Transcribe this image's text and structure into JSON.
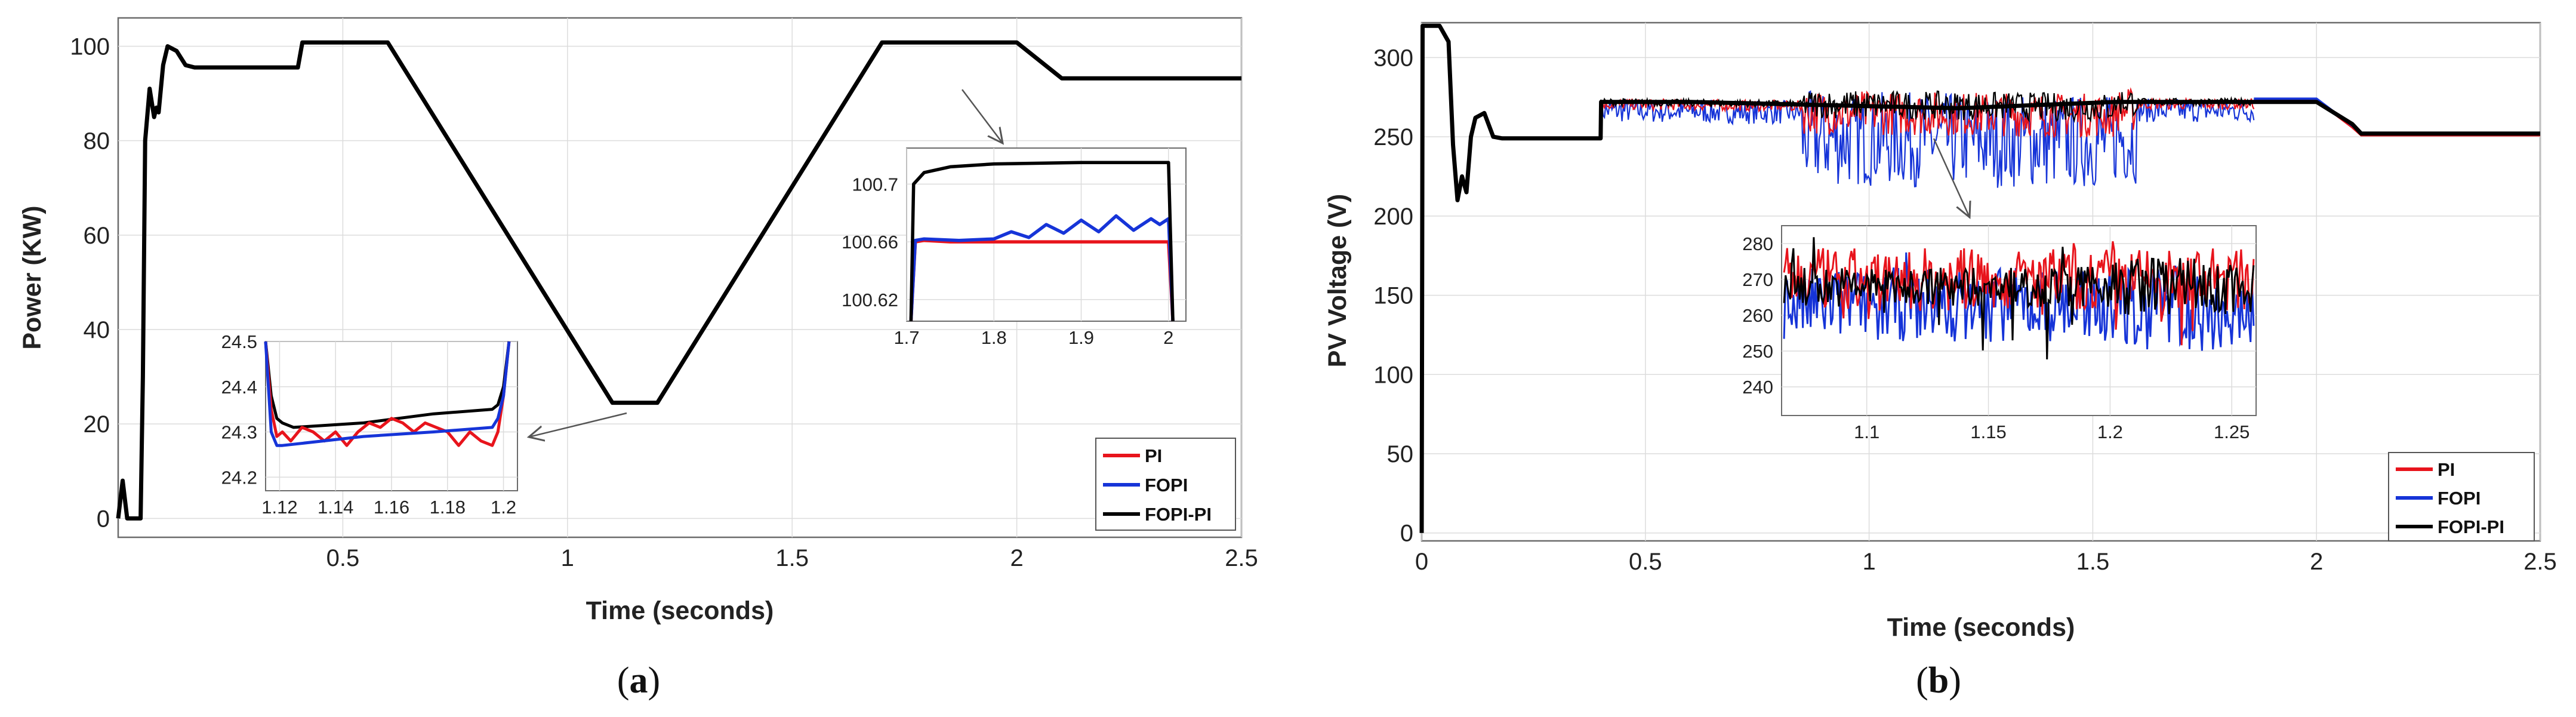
{
  "chart_data": [
    {
      "type": "line",
      "caption": "(a)",
      "xlabel": "Time (seconds)",
      "ylabel": "Power (KW)",
      "xlim": [
        0,
        2.5
      ],
      "ylim": [
        -4,
        106
      ],
      "x_ticks": [
        0.5,
        1,
        1.5,
        2,
        2.5
      ],
      "y_ticks": [
        0,
        20,
        40,
        60,
        80,
        100
      ],
      "grid": true,
      "legend_position": "bottom-right",
      "colors": {
        "PI": "#e8141c",
        "FOPI": "#1634d8",
        "FOPI-PI": "#000000"
      },
      "series": [
        {
          "name": "PI",
          "color": "#e8141c"
        },
        {
          "name": "FOPI",
          "color": "#1634d8"
        },
        {
          "name": "FOPI-PI",
          "color": "#000000"
        }
      ],
      "main_curve": {
        "x": [
          0.0,
          0.01,
          0.02,
          0.05,
          0.055,
          0.06,
          0.07,
          0.08,
          0.085,
          0.09,
          0.1,
          0.11,
          0.13,
          0.15,
          0.17,
          0.25,
          0.35,
          0.4,
          0.41,
          0.6,
          1.1,
          1.2,
          1.7,
          2.0,
          2.1,
          2.5
        ],
        "y": [
          0,
          8,
          0,
          0,
          30,
          80,
          91,
          85,
          87,
          86,
          96,
          100,
          99,
          96,
          95.5,
          95.5,
          95.5,
          95.5,
          100.8,
          100.8,
          24.5,
          24.5,
          100.8,
          100.8,
          93.2,
          93.2
        ]
      },
      "inset_low": {
        "xlim": [
          1.115,
          1.205
        ],
        "ylim": [
          24.17,
          24.5
        ],
        "x_ticks": [
          1.12,
          1.14,
          1.16,
          1.18,
          1.2
        ],
        "y_ticks": [
          24.2,
          24.3,
          24.4,
          24.5
        ],
        "series": [
          {
            "name": "FOPI-PI",
            "x": [
              1.115,
              1.117,
              1.119,
              1.121,
              1.125,
              1.15,
              1.175,
              1.196,
              1.198,
              1.2,
              1.202
            ],
            "y": [
              24.5,
              24.38,
              24.33,
              24.32,
              24.31,
              24.32,
              24.34,
              24.35,
              24.36,
              24.4,
              24.5
            ]
          },
          {
            "name": "PI",
            "x": [
              1.115,
              1.117,
              1.119,
              1.121,
              1.124,
              1.128,
              1.132,
              1.136,
              1.14,
              1.144,
              1.148,
              1.152,
              1.156,
              1.16,
              1.164,
              1.168,
              1.172,
              1.176,
              1.18,
              1.184,
              1.188,
              1.192,
              1.196,
              1.198,
              1.2,
              1.202
            ],
            "y": [
              24.5,
              24.35,
              24.29,
              24.3,
              24.28,
              24.31,
              24.3,
              24.28,
              24.3,
              24.27,
              24.3,
              24.32,
              24.31,
              24.33,
              24.32,
              24.3,
              24.32,
              24.31,
              24.3,
              24.27,
              24.3,
              24.28,
              24.27,
              24.3,
              24.38,
              24.5
            ]
          },
          {
            "name": "FOPI",
            "x": [
              1.115,
              1.117,
              1.119,
              1.121,
              1.15,
              1.175,
              1.196,
              1.198,
              1.2,
              1.202
            ],
            "y": [
              24.5,
              24.3,
              24.27,
              24.27,
              24.29,
              24.3,
              24.31,
              24.33,
              24.38,
              24.5
            ]
          }
        ]
      },
      "inset_high": {
        "xlim": [
          1.7,
          2.02
        ],
        "ylim": [
          100.605,
          100.725
        ],
        "x_ticks": [
          1.7,
          1.8,
          1.9,
          2
        ],
        "y_ticks": [
          100.62,
          100.66,
          100.7
        ],
        "series": [
          {
            "name": "PI",
            "x": [
              1.705,
              1.71,
              1.72,
              1.75,
              1.8,
              1.9,
              2.0,
              2.005
            ],
            "y": [
              100.605,
              100.66,
              100.661,
              100.66,
              100.66,
              100.66,
              100.66,
              100.605
            ]
          },
          {
            "name": "FOPI",
            "x": [
              1.705,
              1.71,
              1.72,
              1.76,
              1.8,
              1.82,
              1.84,
              1.86,
              1.88,
              1.9,
              1.92,
              1.94,
              1.96,
              1.98,
              1.99,
              2.0,
              2.005
            ],
            "y": [
              100.605,
              100.661,
              100.662,
              100.661,
              100.662,
              100.667,
              100.663,
              100.672,
              100.666,
              100.675,
              100.667,
              100.678,
              100.668,
              100.676,
              100.672,
              100.676,
              100.605
            ]
          },
          {
            "name": "FOPI-PI",
            "x": [
              1.705,
              1.708,
              1.72,
              1.75,
              1.8,
              1.9,
              2.0,
              2.005
            ],
            "y": [
              100.605,
              100.7,
              100.708,
              100.712,
              100.714,
              100.715,
              100.715,
              100.605
            ]
          }
        ]
      }
    },
    {
      "type": "line",
      "caption": "(b)",
      "xlabel": "Time (seconds)",
      "ylabel": "PV Voltage (V)",
      "xlim": [
        0,
        2.5
      ],
      "ylim": [
        -5,
        322
      ],
      "x_ticks": [
        0,
        0.5,
        1,
        1.5,
        2,
        2.5
      ],
      "y_ticks": [
        0,
        50,
        100,
        150,
        200,
        250,
        300
      ],
      "grid": true,
      "legend_position": "bottom-right",
      "colors": {
        "PI": "#e8141c",
        "FOPI": "#1634d8",
        "FOPI-PI": "#000000"
      },
      "series": [
        {
          "name": "PI",
          "color": "#e8141c"
        },
        {
          "name": "FOPI",
          "color": "#1634d8"
        },
        {
          "name": "FOPI-PI",
          "color": "#000000"
        }
      ],
      "main_curve": {
        "x": [
          0.0,
          0.002,
          0.005,
          0.04,
          0.06,
          0.07,
          0.08,
          0.09,
          0.1,
          0.11,
          0.12,
          0.14,
          0.16,
          0.18,
          0.4,
          0.401,
          0.6,
          0.9,
          1.2,
          1.55,
          2.0,
          2.08,
          2.1,
          2.5
        ],
        "y": [
          0,
          320,
          320,
          320,
          310,
          245,
          210,
          225,
          215,
          250,
          262,
          265,
          250,
          249,
          249,
          272,
          272,
          270,
          268,
          272,
          272,
          258,
          252,
          252
        ]
      },
      "inset": {
        "xlim": [
          1.065,
          1.26
        ],
        "ylim": [
          232,
          285
        ],
        "x_ticks": [
          1.1,
          1.15,
          1.2,
          1.25
        ],
        "y_ticks": [
          240,
          250,
          260,
          270,
          280
        ],
        "levels": {
          "PI": 270,
          "FOPI": 265,
          "FOPI-PI": 268
        }
      }
    }
  ]
}
